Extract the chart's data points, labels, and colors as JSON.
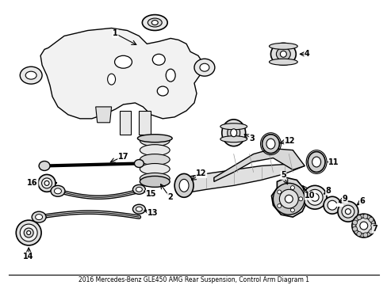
{
  "title": "2016 Mercedes-Benz GLE450 AMG Rear Suspension, Control Arm Diagram 1",
  "bg_color": "#ffffff",
  "fig_width": 4.89,
  "fig_height": 3.6,
  "dpi": 100,
  "line_color": "#000000",
  "text_color": "#000000",
  "font_size": 7
}
